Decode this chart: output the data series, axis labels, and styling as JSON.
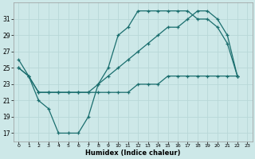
{
  "background_color": "#cde8e8",
  "grid_color": "#b8d8d8",
  "line_color": "#1a6e6e",
  "xlabel": "Humidex (Indice chaleur)",
  "xlim": [
    -0.5,
    23.5
  ],
  "ylim": [
    16,
    33
  ],
  "yticks": [
    17,
    19,
    21,
    23,
    25,
    27,
    29,
    31
  ],
  "xticks": [
    0,
    1,
    2,
    3,
    4,
    5,
    6,
    7,
    8,
    9,
    10,
    11,
    12,
    13,
    14,
    15,
    16,
    17,
    18,
    19,
    20,
    21,
    22,
    23
  ],
  "line1_x": [
    0,
    1,
    2,
    3,
    4,
    5,
    6,
    7,
    8,
    9,
    10,
    11,
    12,
    13,
    14,
    15,
    16,
    17,
    18,
    19,
    20,
    21,
    22
  ],
  "line1_y": [
    26,
    24,
    21,
    20,
    17,
    17,
    17,
    19,
    23,
    25,
    29,
    30,
    32,
    32,
    32,
    32,
    32,
    32,
    31,
    31,
    30,
    28,
    24
  ],
  "line2_x": [
    0,
    1,
    2,
    3,
    4,
    5,
    6,
    7,
    8,
    9,
    10,
    11,
    12,
    13,
    14,
    15,
    16,
    17,
    18,
    19,
    20,
    21,
    22
  ],
  "line2_y": [
    25,
    24,
    22,
    22,
    22,
    22,
    22,
    22,
    23,
    24,
    25,
    26,
    27,
    28,
    29,
    30,
    30,
    31,
    32,
    32,
    31,
    29,
    24
  ],
  "line3_x": [
    0,
    1,
    2,
    3,
    4,
    5,
    6,
    7,
    8,
    9,
    10,
    11,
    12,
    13,
    14,
    15,
    16,
    17,
    18,
    19,
    20,
    21,
    22
  ],
  "line3_y": [
    25,
    24,
    22,
    22,
    22,
    22,
    22,
    22,
    22,
    22,
    22,
    22,
    23,
    23,
    23,
    24,
    24,
    24,
    24,
    24,
    24,
    24,
    24
  ]
}
